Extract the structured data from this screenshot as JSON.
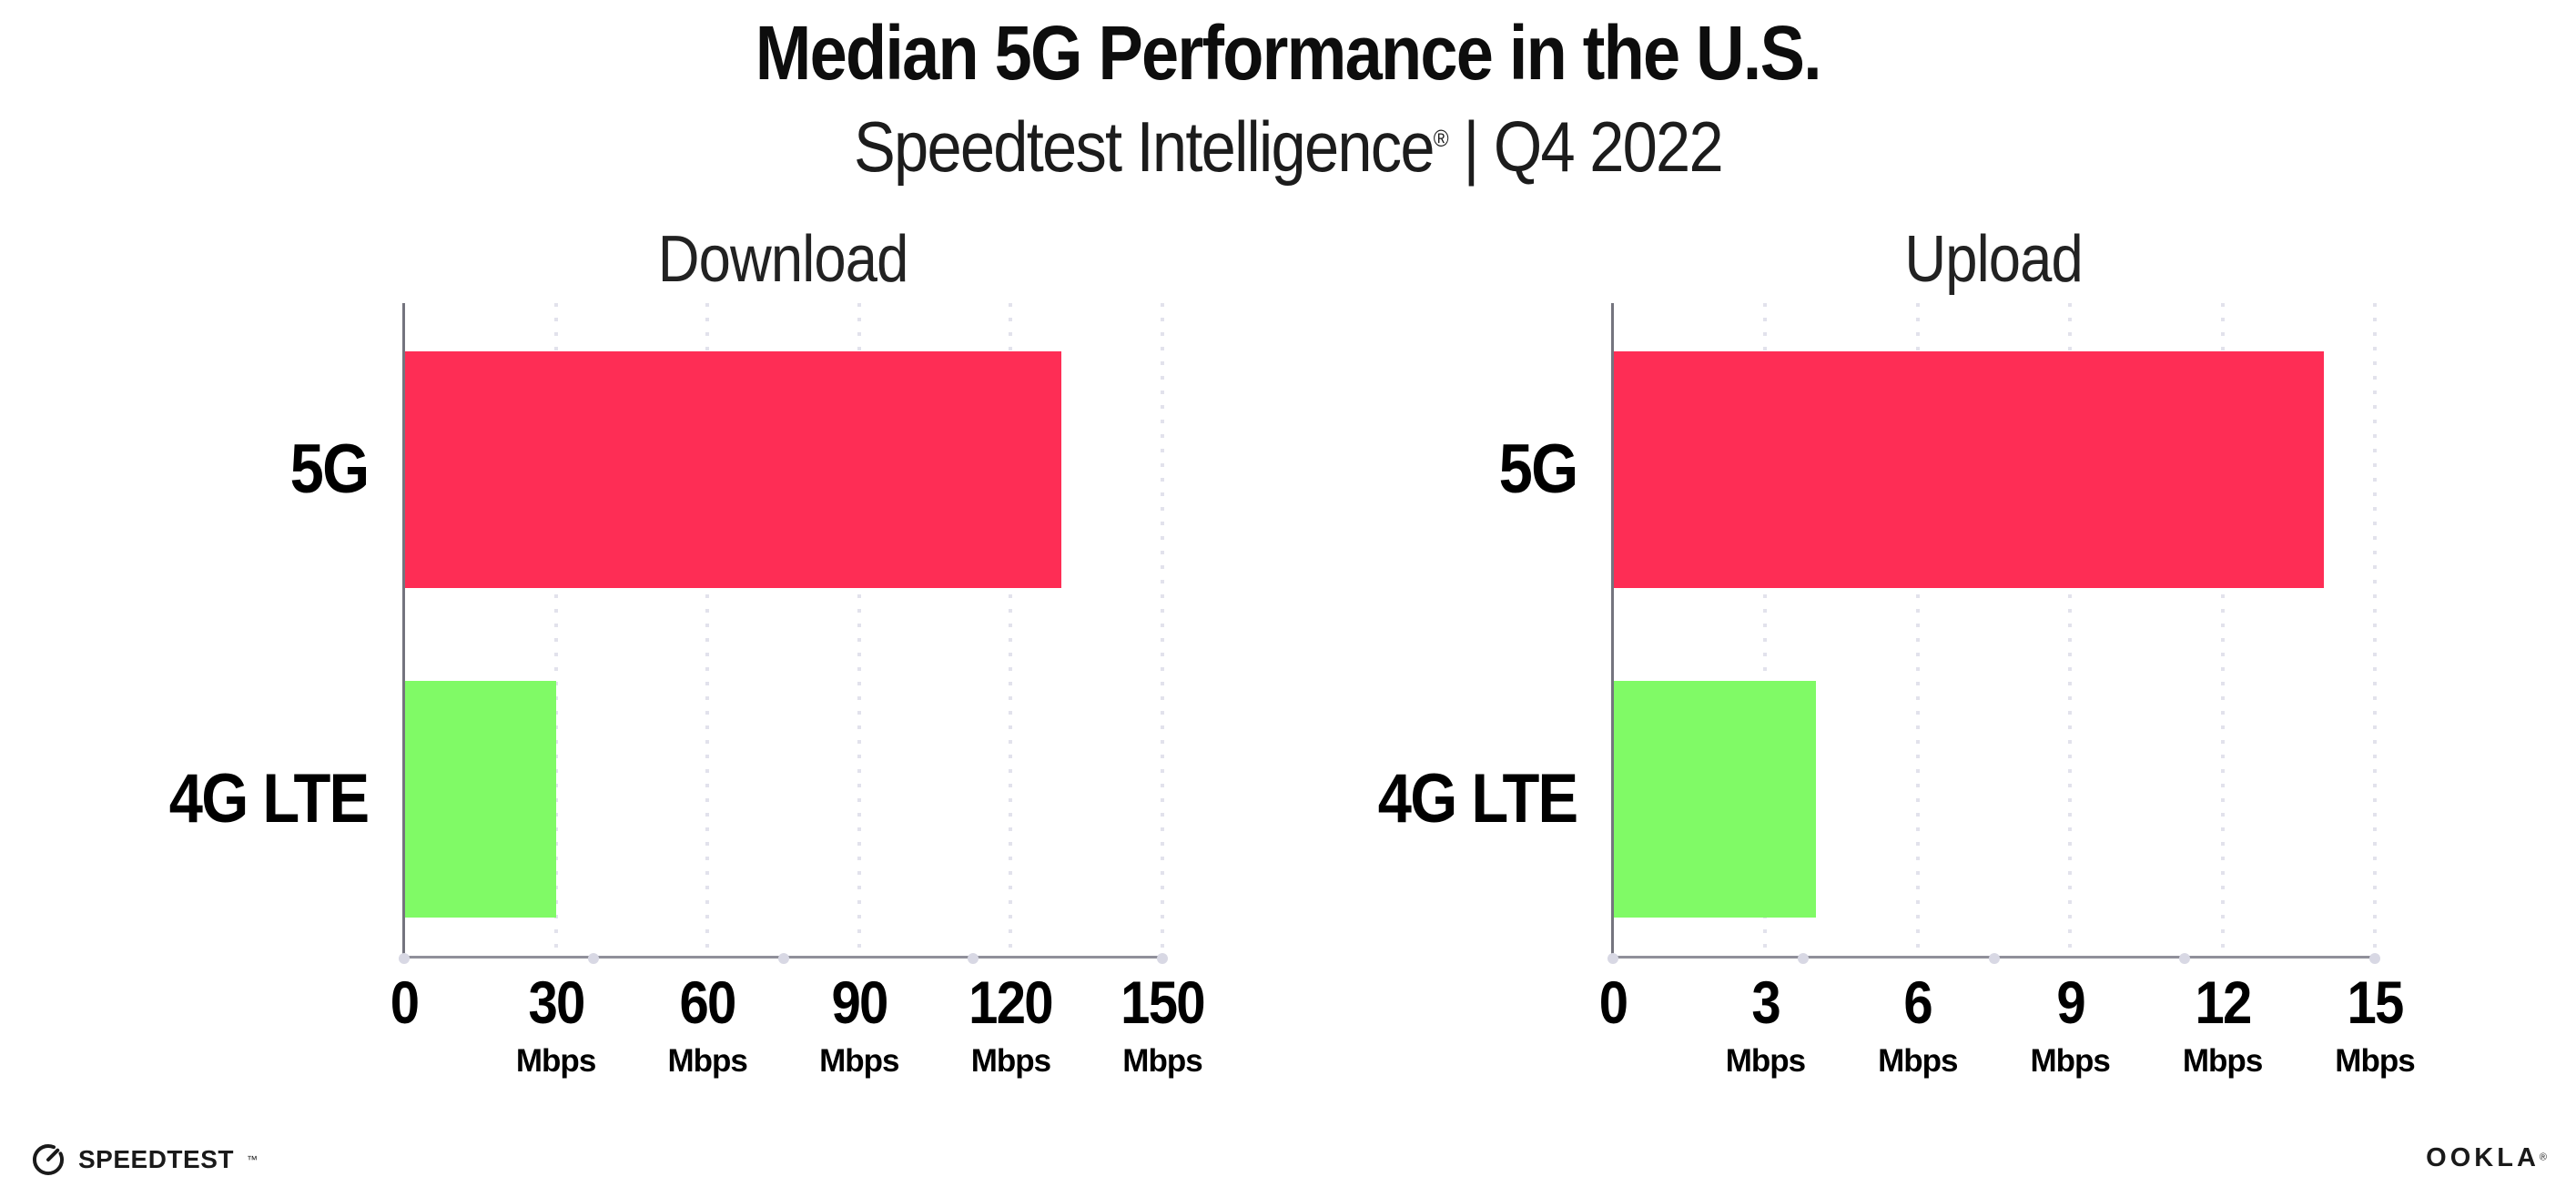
{
  "header": {
    "title": "Median 5G Performance in the U.S.",
    "subtitle_product": "Speedtest Intelligence",
    "subtitle_reg": "®",
    "subtitle_rest": "| Q4 2022"
  },
  "chart_data": [
    {
      "type": "bar",
      "orientation": "horizontal",
      "title": "Download",
      "categories": [
        "5G",
        "4G LTE"
      ],
      "values": [
        130,
        30
      ],
      "unit": "Mbps",
      "xlim": [
        0,
        150
      ],
      "xticks": [
        0,
        30,
        60,
        90,
        120,
        150
      ],
      "xtick_unit": "Mbps",
      "bar_colors": [
        "#fe2d55",
        "#80fa66"
      ],
      "grid": "vertical-dotted",
      "legend": "none"
    },
    {
      "type": "bar",
      "orientation": "horizontal",
      "title": "Upload",
      "categories": [
        "5G",
        "4G LTE"
      ],
      "values": [
        14,
        4
      ],
      "unit": "Mbps",
      "xlim": [
        0,
        15
      ],
      "xticks": [
        0,
        3,
        6,
        9,
        12,
        15
      ],
      "xtick_unit": "Mbps",
      "bar_colors": [
        "#fe2d55",
        "#80fa66"
      ],
      "grid": "vertical-dotted",
      "legend": "none"
    }
  ],
  "footer": {
    "speedtest_label": "SPEEDTEST",
    "speedtest_tm": "™",
    "ookla_label": "OOKLA",
    "ookla_reg": "®"
  },
  "colors": {
    "bar_5g": "#fe2d55",
    "bar_4g_lte": "#80fa66",
    "background": "#ffffff",
    "gridline": "#e2e2ec",
    "axis": "#90909a",
    "text": "#141414"
  }
}
